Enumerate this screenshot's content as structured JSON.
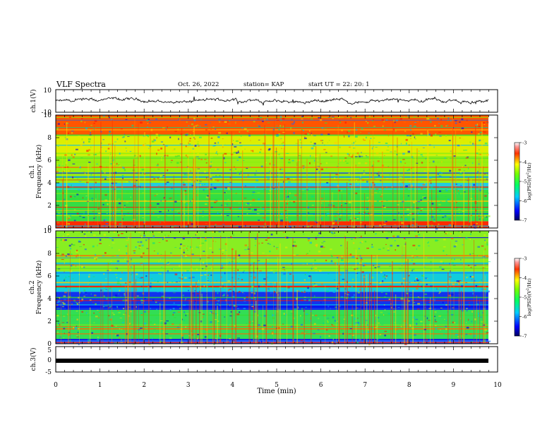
{
  "header": {
    "title": "VLF Spectra",
    "date": "Oct. 26, 2022",
    "station": "station= KAP",
    "start_ut": "start UT =  22: 20: 1"
  },
  "chart_data": [
    {
      "type": "line",
      "panel": "ch1-waveform",
      "ylabel": "ch.1(V)",
      "ylim": [
        -10,
        10
      ],
      "yticks": [
        "10",
        "-10"
      ],
      "xlim": [
        0,
        10
      ],
      "signal": "noisy waveform, roughly -3 to 3 V around 0, over 0–9.8 min"
    },
    {
      "type": "heatmap",
      "panel": "ch1-spectrogram",
      "ylabel": "ch.1 Frequency (kHz)",
      "ylim": [
        0,
        10
      ],
      "yticks": [
        "0",
        "2",
        "4",
        "6",
        "8",
        "10"
      ],
      "xlim": [
        0,
        10
      ],
      "colorbar": {
        "label": "log(PSD)(V²/Hz)",
        "range": [
          -7,
          -3
        ],
        "ticks": [
          "-3",
          "-4",
          "-5",
          "-6",
          "-7"
        ]
      },
      "dominant_colors_by_freq_band_khz": [
        {
          "range": [
            0,
            0.6
          ],
          "color": "#ff2a00"
        },
        {
          "range": [
            0.6,
            3.4
          ],
          "color": "#33dd44"
        },
        {
          "range": [
            3.4,
            4.0
          ],
          "color": "#22ccdd"
        },
        {
          "range": [
            4.0,
            6.4
          ],
          "color": "#99ee11"
        },
        {
          "range": [
            6.4,
            8.2
          ],
          "color": "#ddee00"
        },
        {
          "range": [
            8.2,
            10
          ],
          "color": "#ff5500"
        }
      ]
    },
    {
      "type": "heatmap",
      "panel": "ch2-spectrogram",
      "ylabel": "ch.2 Frequency (kHz)",
      "ylim": [
        0,
        10
      ],
      "yticks": [
        "0",
        "2",
        "4",
        "6",
        "8",
        "10"
      ],
      "xlim": [
        0,
        10
      ],
      "colorbar": {
        "label": "log(PSD)(V²/Hz)",
        "range": [
          -7,
          -3
        ],
        "ticks": [
          "-3",
          "-4",
          "-5",
          "-6",
          "-7"
        ]
      },
      "dominant_colors_by_freq_band_khz": [
        {
          "range": [
            0,
            0.4
          ],
          "color": "#2266ff"
        },
        {
          "range": [
            0.4,
            3.0
          ],
          "color": "#33dd55"
        },
        {
          "range": [
            3.0,
            4.6
          ],
          "color": "#1133ee"
        },
        {
          "range": [
            4.6,
            6.4
          ],
          "color": "#11ccdd"
        },
        {
          "range": [
            6.4,
            10
          ],
          "color": "#88ee22"
        }
      ]
    },
    {
      "type": "line",
      "panel": "ch3-waveform",
      "ylabel": "ch.3(V)",
      "ylim": [
        -5,
        5
      ],
      "yticks": [
        "5",
        "0",
        "-5"
      ],
      "xlim": [
        0,
        10
      ],
      "xlabel": "Time (min)",
      "xticks": [
        "0",
        "1",
        "2",
        "3",
        "4",
        "5",
        "6",
        "7",
        "8",
        "9",
        "10"
      ],
      "signal": "thick flat band near 0 V over 0–9.8 min"
    }
  ]
}
